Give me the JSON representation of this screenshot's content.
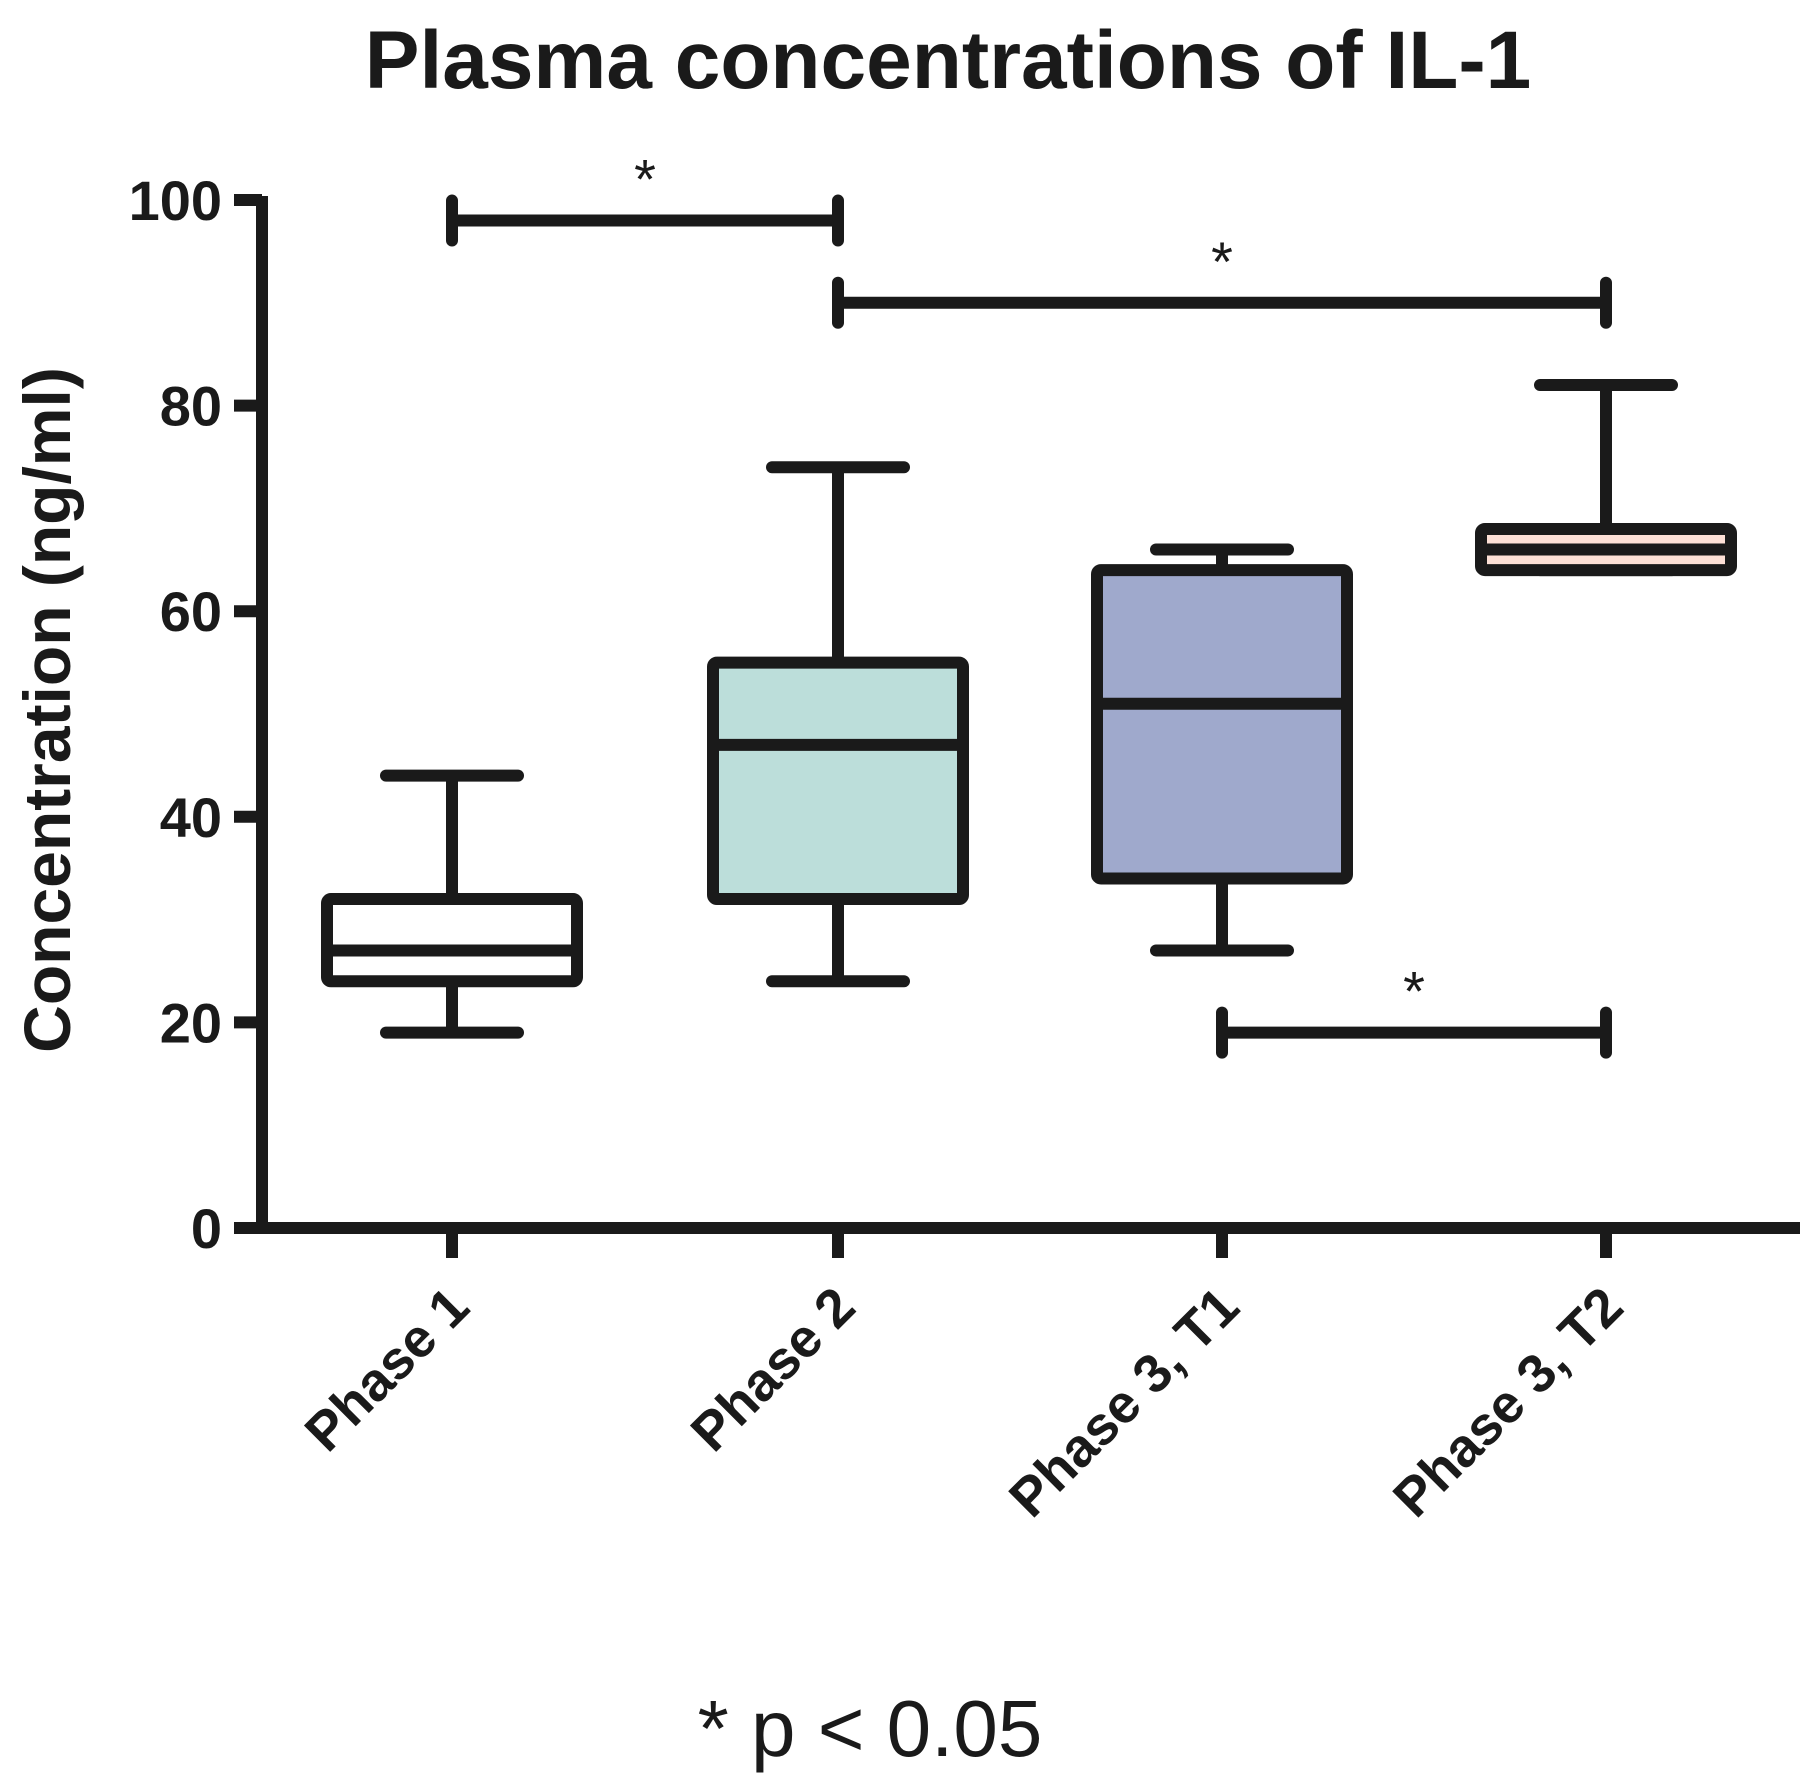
{
  "chart_data": {
    "type": "box",
    "title": "Plasma concentrations of IL-1",
    "ylabel": "Concentration (ng/ml)",
    "xlabel": "",
    "ylim": [
      0,
      100
    ],
    "yticks": [
      0,
      20,
      40,
      60,
      80,
      100
    ],
    "categories": [
      "Phase 1",
      "Phase 2",
      "Phase 3, T1",
      "Phase 3, T2"
    ],
    "boxes": [
      {
        "category": "Phase 1",
        "min": 19,
        "q1": 24,
        "median": 27,
        "q3": 32,
        "max": 44,
        "fill": "#ffffff"
      },
      {
        "category": "Phase 2",
        "min": 24,
        "q1": 32,
        "median": 47,
        "q3": 55,
        "max": 74,
        "fill": "#bcdeda"
      },
      {
        "category": "Phase 3, T1",
        "min": 27,
        "q1": 34,
        "median": 51,
        "q3": 64,
        "max": 66,
        "fill": "#9fa9cc"
      },
      {
        "category": "Phase 3, T2",
        "min": 64,
        "q1": 64,
        "median": 66,
        "q3": 68,
        "max": 82,
        "fill": "#fde0d6"
      }
    ],
    "significance": [
      {
        "from": "Phase 1",
        "to": "Phase 2",
        "y": 98,
        "label": "*"
      },
      {
        "from": "Phase 2",
        "to": "Phase 3, T2",
        "y": 90,
        "label": "*"
      },
      {
        "from": "Phase 3, T1",
        "to": "Phase 3, T2",
        "y": 19,
        "label": "*"
      }
    ],
    "footnote": "* p < 0.05"
  },
  "colors": {
    "ink": "#1a1a1a",
    "background": "#ffffff"
  }
}
